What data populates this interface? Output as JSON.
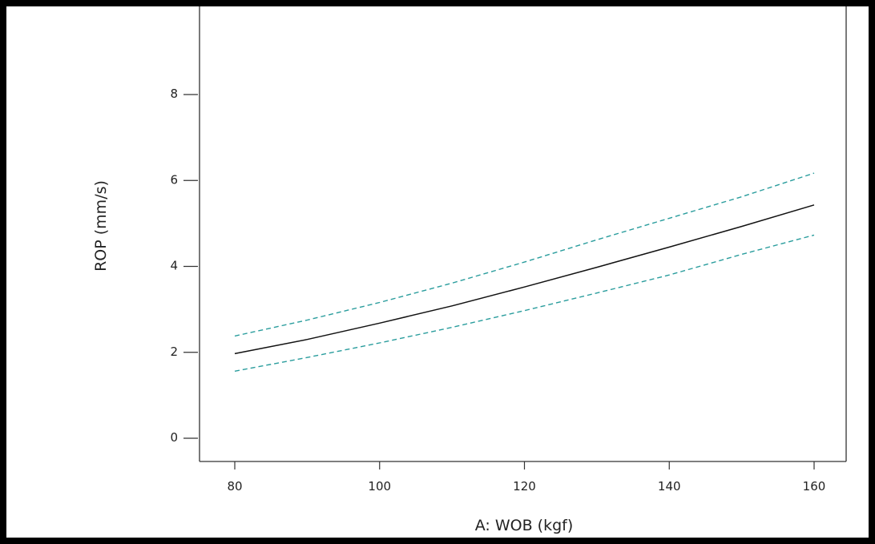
{
  "chart_data": {
    "type": "line",
    "title": "",
    "xlabel": "A: WOB (kgf)",
    "ylabel": "ROP  (mm/s)",
    "xlim": [
      75,
      163
    ],
    "ylim": [
      -0.5,
      10
    ],
    "xticks": [
      80,
      100,
      120,
      140,
      160
    ],
    "yticks": [
      0,
      2,
      4,
      6,
      8
    ],
    "grid": false,
    "legend": "none",
    "x": [
      80,
      90,
      100,
      110,
      120,
      130,
      140,
      150,
      160
    ],
    "series": [
      {
        "role": "prediction",
        "style": "solid",
        "color": "#111111",
        "values": [
          1.97,
          2.3,
          2.68,
          3.08,
          3.52,
          3.98,
          4.45,
          4.93,
          5.43
        ]
      },
      {
        "role": "upper-confidence-band",
        "style": "dashed",
        "color": "#2a9d9d",
        "values": [
          2.38,
          2.75,
          3.16,
          3.61,
          4.1,
          4.62,
          5.12,
          5.62,
          6.17
        ]
      },
      {
        "role": "lower-confidence-band",
        "style": "dashed",
        "color": "#2a9d9d",
        "values": [
          1.56,
          1.88,
          2.22,
          2.58,
          2.97,
          3.38,
          3.8,
          4.28,
          4.73
        ]
      }
    ]
  }
}
